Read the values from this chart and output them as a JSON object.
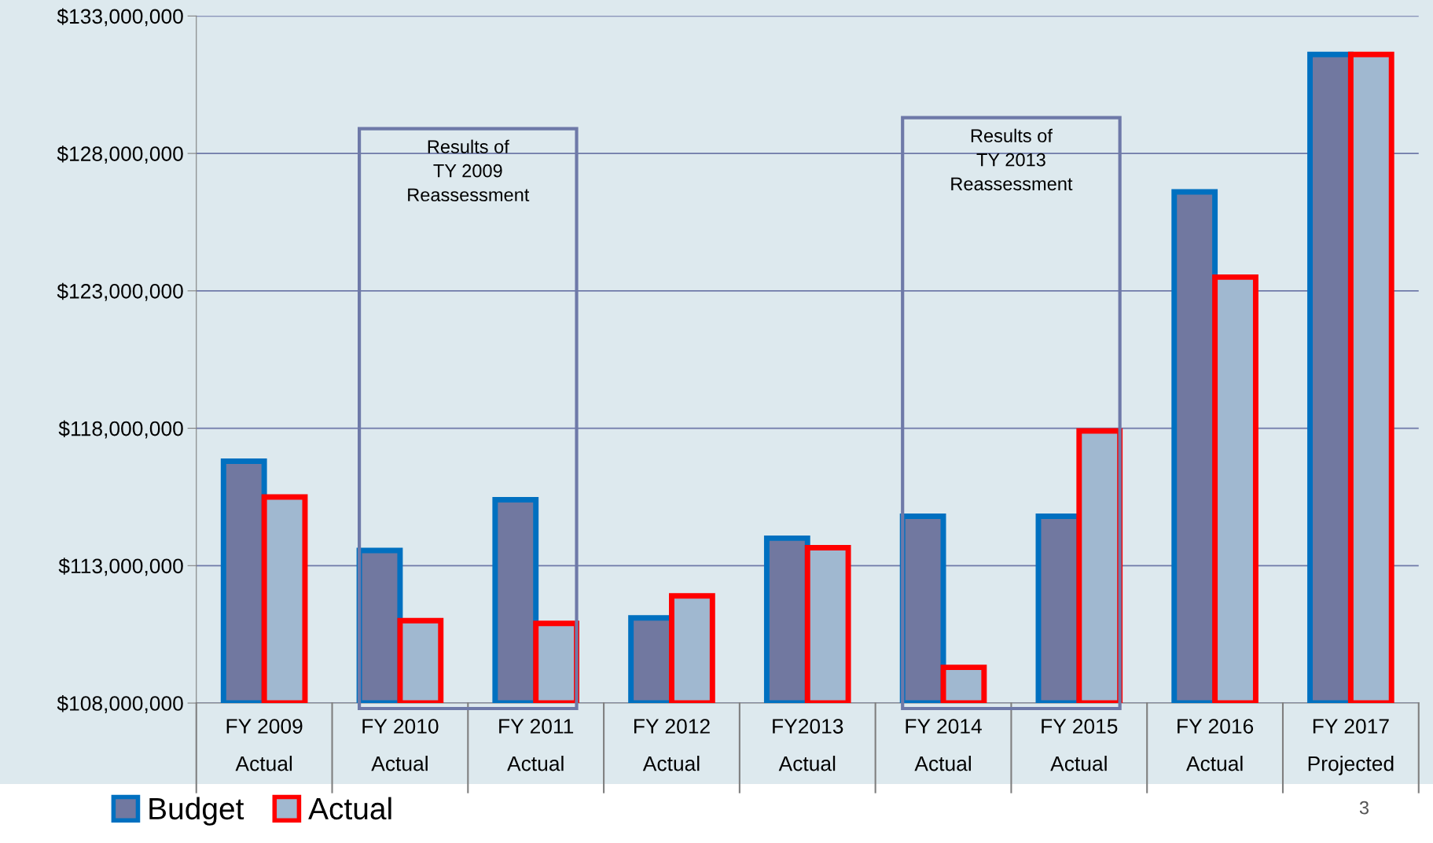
{
  "chart_data": {
    "type": "bar",
    "categories": [
      "FY 2009\nActual",
      "FY 2010\nActual",
      "FY 2011\nActual",
      "FY 2012\nActual",
      "FY2013\nActual",
      "FY 2014\nActual",
      "FY 2015\nActual",
      "FY 2016\nActual",
      "FY 2017\nProjected"
    ],
    "series": [
      {
        "name": "Budget",
        "color": "#7178a0",
        "values": [
          116800000.0,
          113550000.0,
          115400000.0,
          111100000.0,
          114000000.0,
          114800000.0,
          114800000.0,
          126600000.0,
          131600000.0
        ]
      },
      {
        "name": "Actual",
        "color": "#a0b8d0",
        "values": [
          115500000.0,
          111000000.0,
          110900000.0,
          111900000.0,
          113650000.0,
          109300000.0,
          117900000.0,
          123500000.0,
          131600000.0
        ]
      }
    ],
    "ylim": [
      108000000,
      133000000
    ],
    "yticks": [
      {
        "value": 108000000,
        "label": "$108,000,000"
      },
      {
        "value": 113000000,
        "label": "$113,000,000"
      },
      {
        "value": 118000000,
        "label": "$118,000,000"
      },
      {
        "value": 123000000,
        "label": "$123,000,000"
      },
      {
        "value": 128000000,
        "label": "$128,000,000"
      },
      {
        "value": 133000000,
        "label": "$133,000,000"
      }
    ],
    "grid": "y",
    "legend": "bottom left",
    "annotations": [
      "Results of\nTY 2009\nReassessment",
      "Results of\nTY 2013\nReassessment",
      "3"
    ]
  }
}
